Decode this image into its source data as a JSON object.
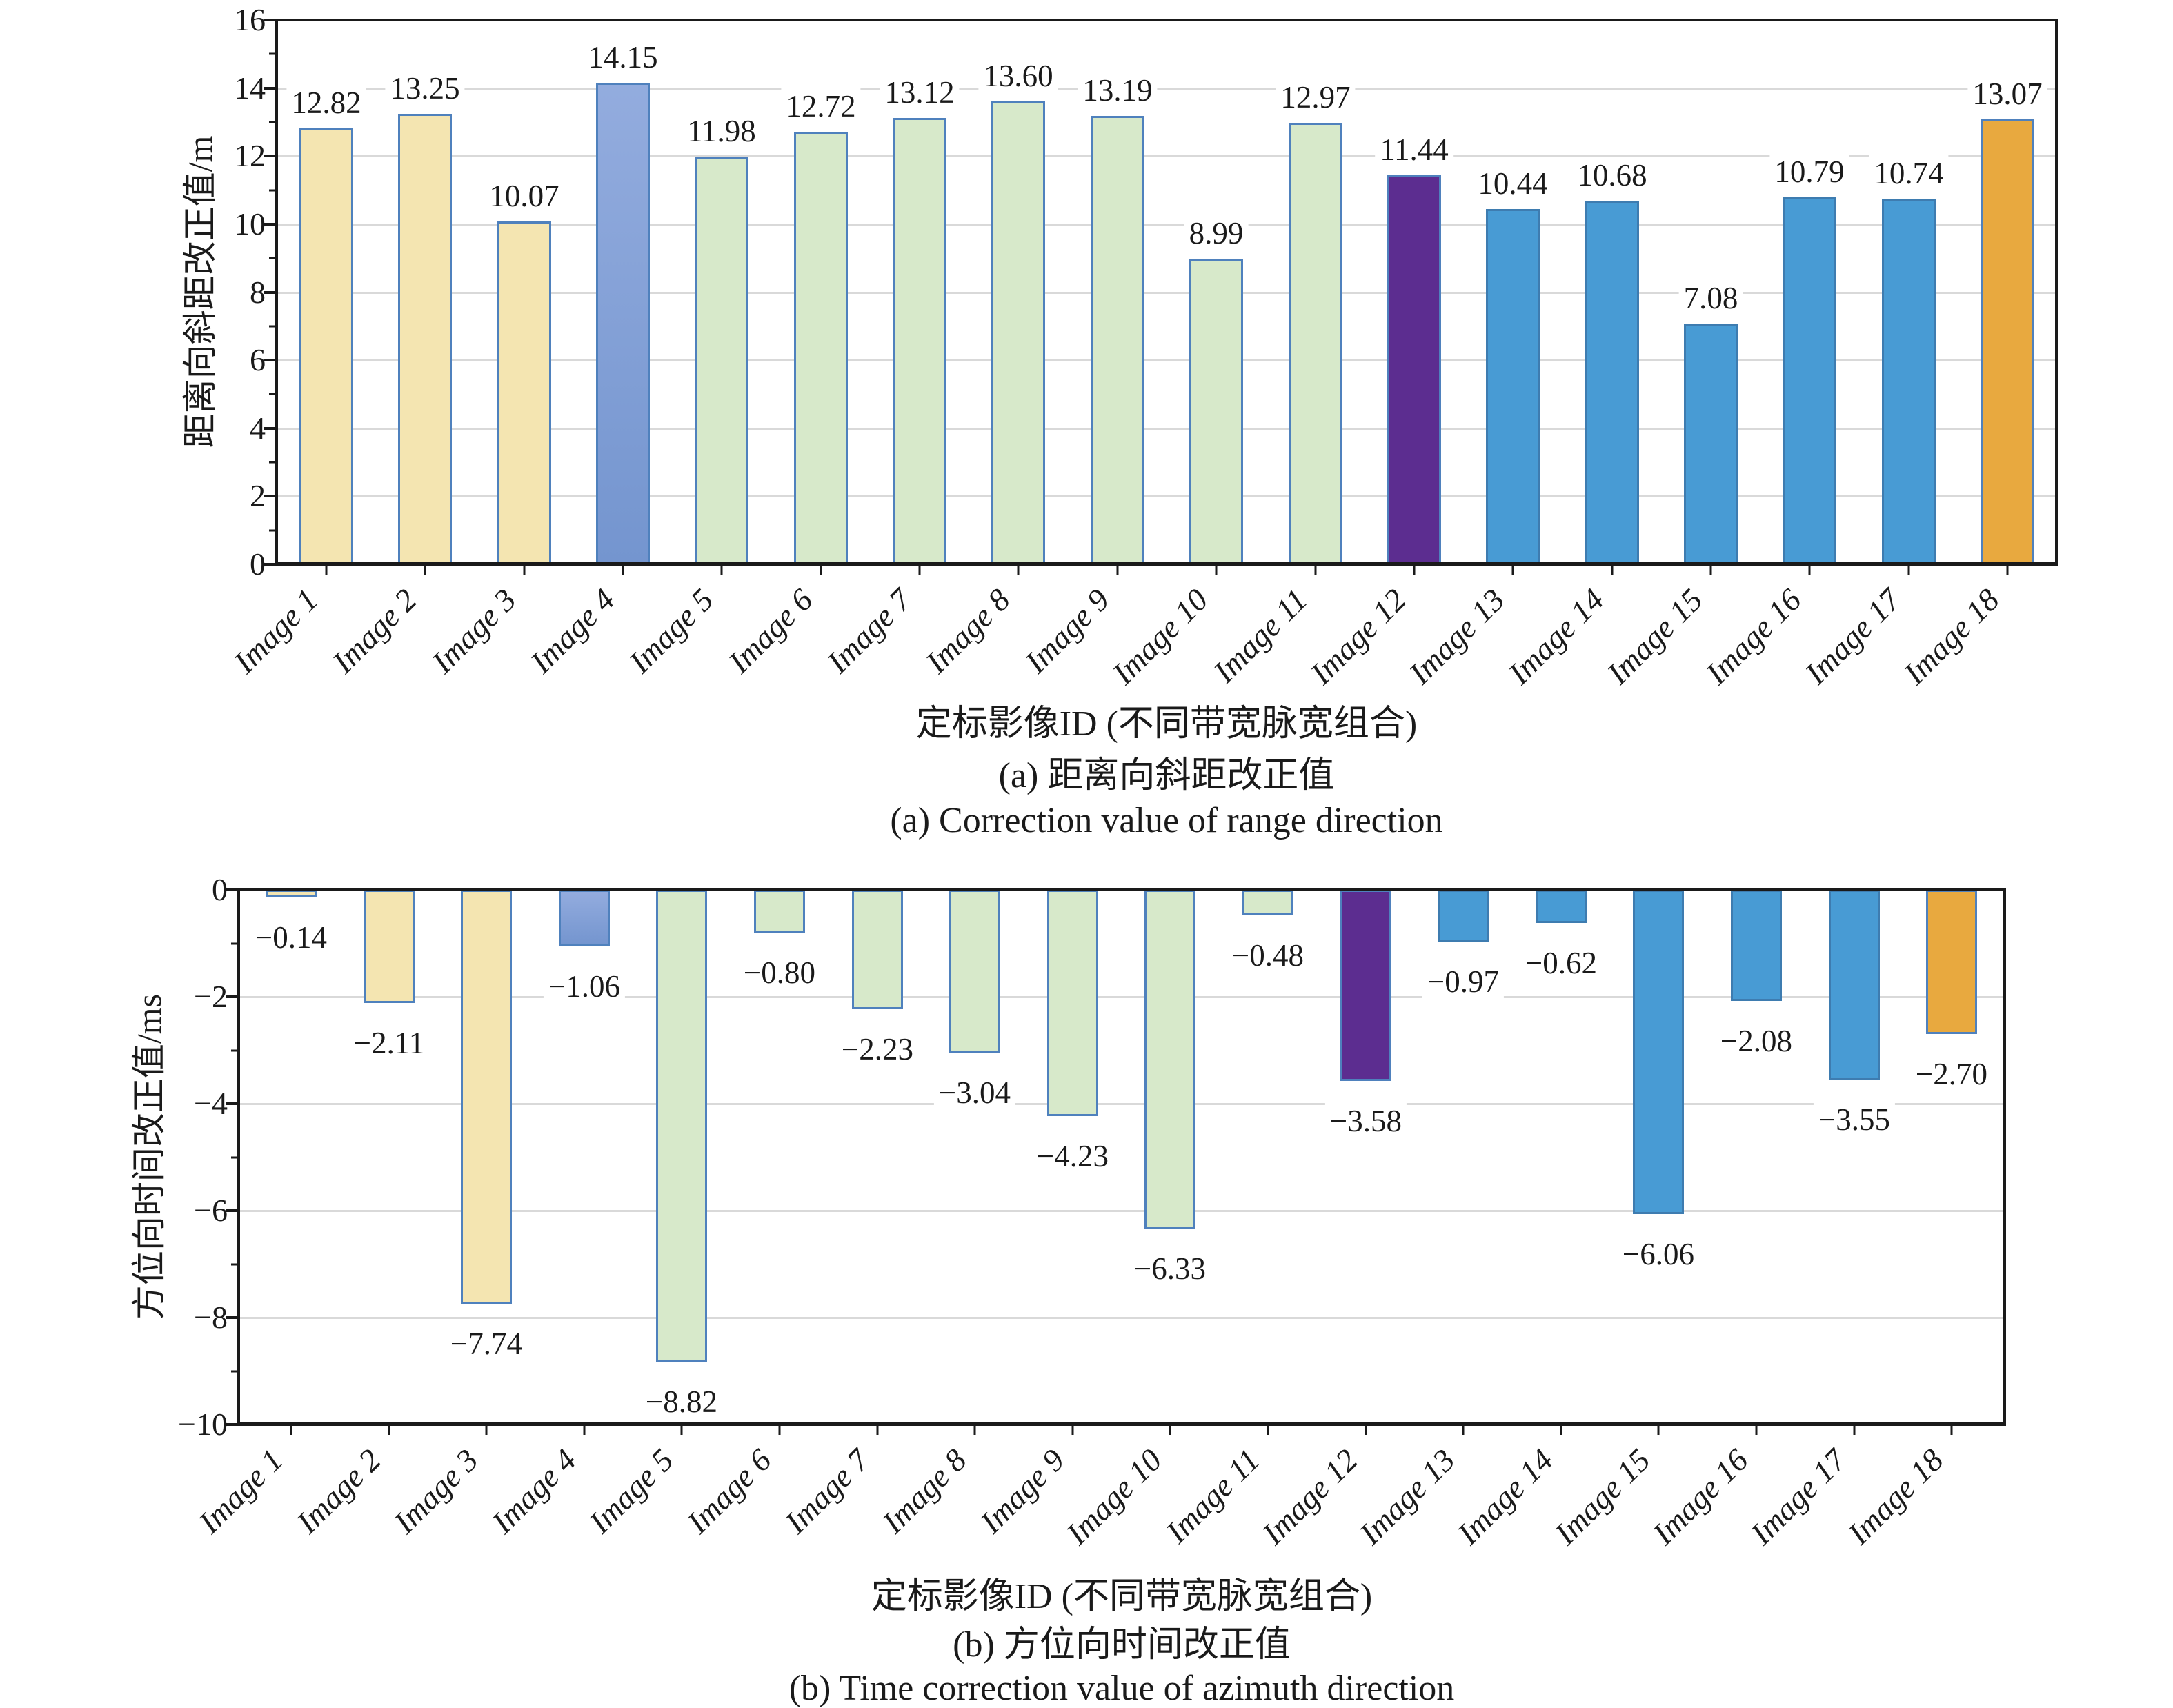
{
  "figure": {
    "panels": [
      {
        "id": "a",
        "ylabel": "距离向斜距改正值/m",
        "xlabel": "定标影像ID (不同带宽脉宽组合)",
        "caption_zh": "(a) 距离向斜距改正值",
        "caption_en": "(a) Correction value of range direction"
      },
      {
        "id": "b",
        "ylabel": "方位向时间改正值/ms",
        "xlabel": "定标影像ID (不同带宽脉宽组合)",
        "caption_zh": "(b) 方位向时间改正值",
        "caption_en": "(b) Time correction value of azimuth direction"
      }
    ]
  },
  "chart_data": [
    {
      "type": "bar",
      "title": "(a) 距离向斜距改正值",
      "xlabel": "定标影像ID (不同带宽脉宽组合)",
      "ylabel": "距离向斜距改正值/m",
      "categories": [
        "Image 1",
        "Image 2",
        "Image 3",
        "Image 4",
        "Image 5",
        "Image 6",
        "Image 7",
        "Image 8",
        "Image 9",
        "Image 10",
        "Image 11",
        "Image 12",
        "Image 13",
        "Image 14",
        "Image 15",
        "Image 16",
        "Image 17",
        "Image 18"
      ],
      "values": [
        12.82,
        13.25,
        10.07,
        14.15,
        11.98,
        12.72,
        13.12,
        13.6,
        13.19,
        8.99,
        12.97,
        11.44,
        10.44,
        10.68,
        7.08,
        10.79,
        10.74,
        13.07
      ],
      "labels": [
        "12.82",
        "13.25",
        "10.07",
        "14.15",
        "11.98",
        "12.72",
        "13.12",
        "13.60",
        "13.19",
        "8.99",
        "12.97",
        "11.44",
        "10.44",
        "10.68",
        "7.08",
        "10.79",
        "10.74",
        "13.07"
      ],
      "ylim": [
        0,
        16
      ],
      "yticks": [
        0,
        2,
        4,
        6,
        8,
        10,
        12,
        14,
        16
      ],
      "minor_yticks": [
        1,
        3,
        5,
        7,
        9,
        11,
        13,
        15
      ],
      "grid": true,
      "legend": "none",
      "color_groups": [
        "tan",
        "tan",
        "tan",
        "periwinkle",
        "green",
        "green",
        "green",
        "green",
        "green",
        "green",
        "green",
        "purple",
        "blue",
        "blue",
        "blue",
        "blue",
        "blue",
        "orange"
      ]
    },
    {
      "type": "bar",
      "title": "(b) 方位向时间改正值",
      "xlabel": "定标影像ID (不同带宽脉宽组合)",
      "ylabel": "方位向时间改正值/ms",
      "categories": [
        "Image 1",
        "Image 2",
        "Image 3",
        "Image 4",
        "Image 5",
        "Image 6",
        "Image 7",
        "Image 8",
        "Image 9",
        "Image 10",
        "Image 11",
        "Image 12",
        "Image 13",
        "Image 14",
        "Image 15",
        "Image 16",
        "Image 17",
        "Image 18"
      ],
      "values": [
        -0.14,
        -2.11,
        -7.74,
        -1.06,
        -8.82,
        -0.8,
        -2.23,
        -3.04,
        -4.23,
        -6.33,
        -0.48,
        -3.58,
        -0.97,
        -0.62,
        -6.06,
        -2.08,
        -3.55,
        -2.7
      ],
      "labels": [
        "−0.14",
        "−2.11",
        "−7.74",
        "−1.06",
        "−8.82",
        "−0.80",
        "−2.23",
        "−3.04",
        "−4.23",
        "−6.33",
        "−0.48",
        "−3.58",
        "−0.97",
        "−0.62",
        "−6.06",
        "−2.08",
        "−3.55",
        "−2.70"
      ],
      "ylim": [
        -10,
        0
      ],
      "yticks": [
        0,
        -2,
        -4,
        -6,
        -8,
        -10
      ],
      "minor_yticks": [
        -1,
        -3,
        -5,
        -7,
        -9
      ],
      "grid": true,
      "legend": "none",
      "color_groups": [
        "tan",
        "tan",
        "tan",
        "periwinkle",
        "green",
        "green",
        "green",
        "green",
        "green",
        "green",
        "green",
        "purple",
        "blue",
        "blue",
        "blue",
        "blue",
        "blue",
        "orange"
      ]
    }
  ],
  "palette": {
    "tan": {
      "fill": "#F4E5B1",
      "border": "#4F81BD"
    },
    "periwinkle": {
      "fill": "#93ACDE",
      "fill2": "#7495CF",
      "border": "#4F81BD"
    },
    "green": {
      "fill": "#D7E9CA",
      "border": "#4F81BD"
    },
    "purple": {
      "fill": "#5C2D90",
      "border": "#4F81BD"
    },
    "blue": {
      "fill": "#489BD4",
      "border": "#3E7CB0"
    },
    "orange": {
      "fill": "#E8A93F",
      "border": "#4F81BD"
    }
  },
  "axis_style": {
    "axis_color": "#1A1A1A",
    "grid_color": "#D9D9D9",
    "text_color": "#1A1A1A"
  }
}
